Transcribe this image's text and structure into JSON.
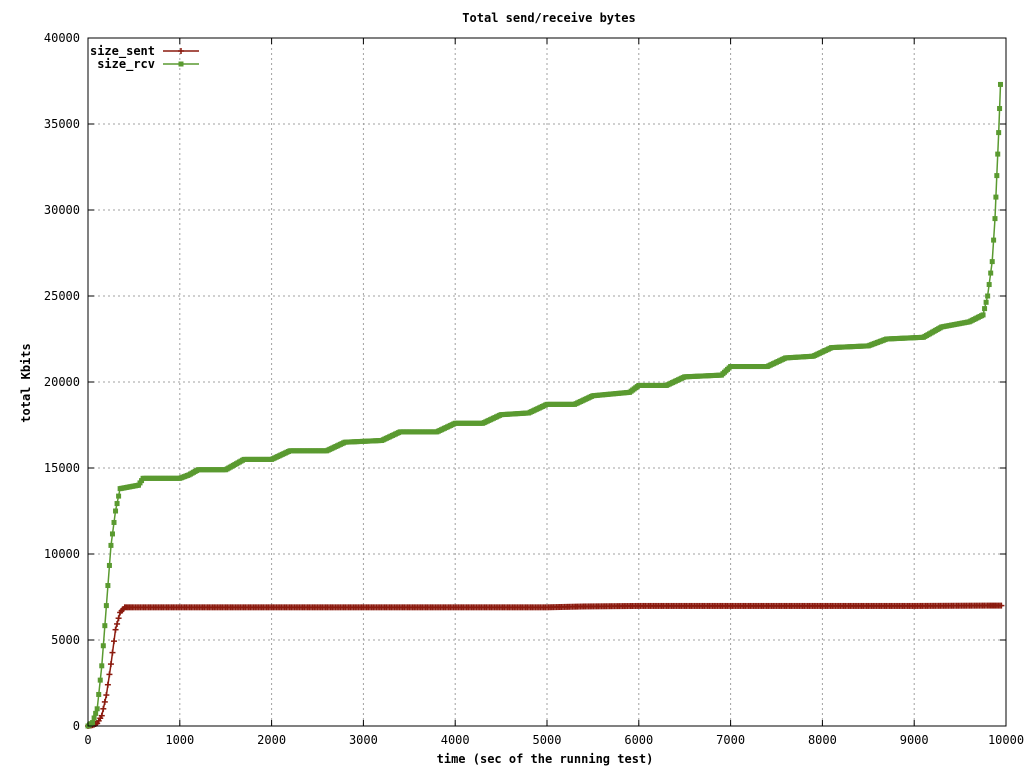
{
  "chart_data": {
    "type": "line",
    "title": "Total send/receive bytes",
    "xlabel": "time (sec of the running test)",
    "ylabel": "total Kbits",
    "xlim": [
      0,
      10000
    ],
    "ylim": [
      0,
      40000
    ],
    "xticks": [
      0,
      1000,
      2000,
      3000,
      4000,
      5000,
      6000,
      7000,
      8000,
      9000,
      10000
    ],
    "yticks": [
      0,
      5000,
      10000,
      15000,
      20000,
      25000,
      30000,
      35000,
      40000
    ],
    "grid": true,
    "legend_position": "top-left",
    "series": [
      {
        "name": "size_sent",
        "color": "#8b1a0e",
        "marker": "plus",
        "points": [
          [
            0,
            0
          ],
          [
            50,
            50
          ],
          [
            100,
            150
          ],
          [
            150,
            600
          ],
          [
            200,
            1800
          ],
          [
            250,
            3600
          ],
          [
            300,
            5600
          ],
          [
            350,
            6600
          ],
          [
            400,
            6900
          ],
          [
            500,
            6900
          ],
          [
            1000,
            6900
          ],
          [
            2000,
            6900
          ],
          [
            3000,
            6900
          ],
          [
            4000,
            6900
          ],
          [
            5000,
            6900
          ],
          [
            5400,
            6950
          ],
          [
            6000,
            6980
          ],
          [
            7000,
            6980
          ],
          [
            8000,
            6980
          ],
          [
            9000,
            6980
          ],
          [
            9800,
            7000
          ],
          [
            9950,
            7000
          ]
        ]
      },
      {
        "name": "size_rcv",
        "color": "#5a9a30",
        "marker": "square",
        "points": [
          [
            0,
            0
          ],
          [
            50,
            200
          ],
          [
            100,
            1000
          ],
          [
            150,
            3500
          ],
          [
            200,
            7000
          ],
          [
            250,
            10500
          ],
          [
            300,
            12500
          ],
          [
            350,
            13800
          ],
          [
            450,
            13900
          ],
          [
            550,
            14000
          ],
          [
            600,
            14400
          ],
          [
            1000,
            14400
          ],
          [
            1100,
            14600
          ],
          [
            1200,
            14900
          ],
          [
            1500,
            14900
          ],
          [
            1700,
            15500
          ],
          [
            2000,
            15500
          ],
          [
            2200,
            16000
          ],
          [
            2600,
            16000
          ],
          [
            2800,
            16500
          ],
          [
            3200,
            16600
          ],
          [
            3400,
            17100
          ],
          [
            3800,
            17100
          ],
          [
            4000,
            17600
          ],
          [
            4300,
            17600
          ],
          [
            4500,
            18100
          ],
          [
            4800,
            18200
          ],
          [
            5000,
            18700
          ],
          [
            5300,
            18700
          ],
          [
            5500,
            19200
          ],
          [
            5900,
            19400
          ],
          [
            6000,
            19800
          ],
          [
            6300,
            19800
          ],
          [
            6500,
            20300
          ],
          [
            6900,
            20400
          ],
          [
            7000,
            20900
          ],
          [
            7400,
            20900
          ],
          [
            7600,
            21400
          ],
          [
            7900,
            21500
          ],
          [
            8100,
            22000
          ],
          [
            8500,
            22100
          ],
          [
            8700,
            22500
          ],
          [
            9100,
            22600
          ],
          [
            9300,
            23200
          ],
          [
            9600,
            23500
          ],
          [
            9750,
            23900
          ],
          [
            9800,
            25000
          ],
          [
            9850,
            27000
          ],
          [
            9880,
            29500
          ],
          [
            9900,
            32000
          ],
          [
            9920,
            34500
          ],
          [
            9940,
            37300
          ]
        ]
      }
    ]
  }
}
